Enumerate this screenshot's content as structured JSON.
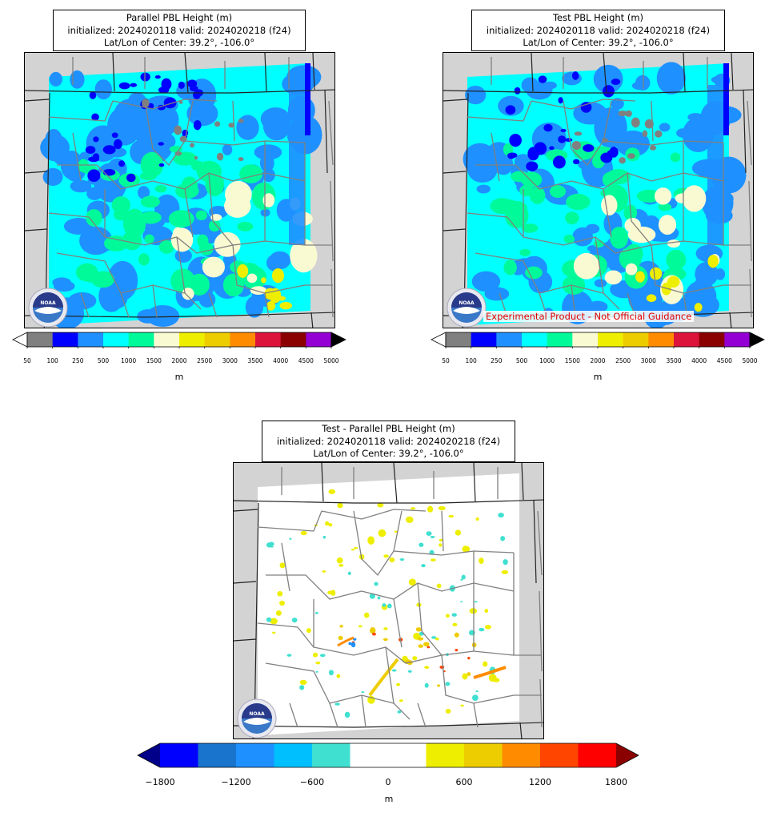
{
  "panels": [
    {
      "title_line1": "Parallel PBL Height (m)",
      "title_line2": "initialized: 2024020118 valid: 2024020218 (f24)",
      "title_line3": "Lat/Lon of Center: 39.2°, -106.0°"
    },
    {
      "title_line1": "Test PBL Height (m)",
      "title_line2": "initialized: 2024020118 valid: 2024020218 (f24)",
      "title_line3": "Lat/Lon of Center: 39.2°, -106.0°",
      "note": "Experimental Product - Not Official Guidance"
    },
    {
      "title_line1": "Test - Parallel PBL Height (m)",
      "title_line2": "initialized: 2024020118 valid: 2024020218 (f24)",
      "title_line3": "Lat/Lon of Center: 39.2°, -106.0°"
    }
  ],
  "pbl_colorbar": {
    "ticks": [
      "50",
      "100",
      "250",
      "500",
      "1000",
      "1500",
      "2000",
      "2500",
      "3000",
      "3500",
      "4000",
      "4500",
      "5000"
    ],
    "colors": [
      "#808080",
      "#0000ff",
      "#1e90ff",
      "#00ffff",
      "#00fa9a",
      "#fafad2",
      "#eeee00",
      "#eecd00",
      "#ff8c00",
      "#dc143c",
      "#8b0000",
      "#9400d3"
    ],
    "under_color": "#ffffff",
    "over_color": "#000000",
    "unit": "m"
  },
  "diff_colorbar": {
    "ticks": [
      "−1800",
      "−1200",
      "−600",
      "0",
      "600",
      "1200",
      "1800"
    ],
    "colors": [
      "#0000ff",
      "#1874cd",
      "#1e90ff",
      "#00bfff",
      "#40e0d0",
      "#ffffff",
      "#ffffff",
      "#eeee00",
      "#eecd00",
      "#ff8c00",
      "#ff4500",
      "#ff0000"
    ],
    "under_color": "#00008b",
    "over_color": "#8b0000",
    "unit": "m"
  },
  "logo_text": "NOAA"
}
